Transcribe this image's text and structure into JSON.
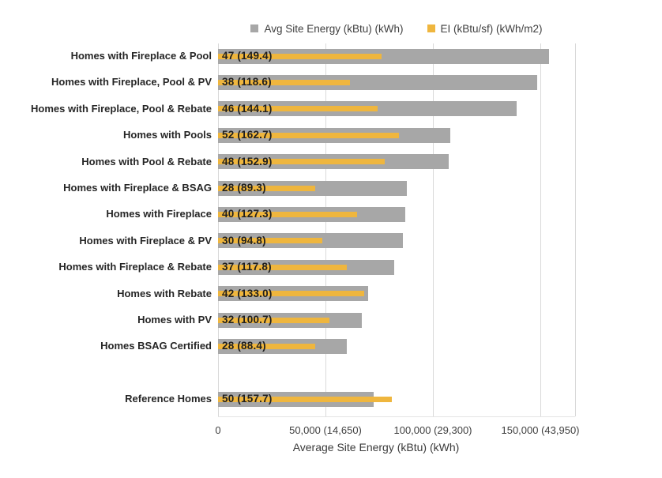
{
  "legend": {
    "items": [
      {
        "label": "Avg Site Energy (kBtu) (kWh)",
        "color": "#a7a7a7",
        "icon": "gray-square-icon"
      },
      {
        "label": "EI (kBtu/sf) (kWh/m2)",
        "color": "#efb63e",
        "icon": "yellow-square-icon"
      }
    ]
  },
  "chart_data": {
    "type": "bar",
    "orientation": "horizontal",
    "title": "",
    "xlabel": "Average Site Energy (kBtu) (kWh)",
    "ylabel": "",
    "x_axis": {
      "min": 0,
      "max": 150000,
      "tick_values": [
        0,
        50000,
        100000,
        150000
      ],
      "tick_labels": [
        "0",
        "50,000 (14,650)",
        "100,000 (29,300)",
        "150,000 (43,950)"
      ],
      "grid": true
    },
    "ei_axis": {
      "min": 0,
      "max": 100,
      "visible": false
    },
    "legend_position": "top",
    "series": [
      {
        "name": "Avg Site Energy (kBtu) (kWh)",
        "color": "#a7a7a7",
        "field": "site_energy"
      },
      {
        "name": "EI (kBtu/sf) (kWh/m2)",
        "color": "#efb63e",
        "field": "ei"
      }
    ],
    "rows": [
      {
        "category": "Homes with Fireplace & Pool",
        "site_energy": 154000,
        "ei": 47,
        "ei_label": "47 (149.4)",
        "slot": 0
      },
      {
        "category": "Homes with Fireplace, Pool & PV",
        "site_energy": 148500,
        "ei": 38,
        "ei_label": "38 (118.6)",
        "slot": 1
      },
      {
        "category": "Homes with Fireplace, Pool & Rebate",
        "site_energy": 139000,
        "ei": 46,
        "ei_label": "46 (144.1)",
        "slot": 2
      },
      {
        "category": "Homes with Pools",
        "site_energy": 108000,
        "ei": 52,
        "ei_label": "52 (162.7)",
        "slot": 3
      },
      {
        "category": "Homes with Pool & Rebate",
        "site_energy": 107500,
        "ei": 48,
        "ei_label": "48 (152.9)",
        "slot": 4
      },
      {
        "category": "Homes with Fireplace & BSAG",
        "site_energy": 88000,
        "ei": 28,
        "ei_label": "28 (89.3)",
        "slot": 5
      },
      {
        "category": "Homes with Fireplace",
        "site_energy": 87000,
        "ei": 40,
        "ei_label": "40 (127.3)",
        "slot": 6
      },
      {
        "category": "Homes with Fireplace & PV",
        "site_energy": 86000,
        "ei": 30,
        "ei_label": "30 (94.8)",
        "slot": 7
      },
      {
        "category": "Homes with Fireplace & Rebate",
        "site_energy": 82000,
        "ei": 37,
        "ei_label": "37 (117.8)",
        "slot": 8
      },
      {
        "category": "Homes with Rebate",
        "site_energy": 70000,
        "ei": 42,
        "ei_label": "42 (133.0)",
        "slot": 9
      },
      {
        "category": "Homes with PV",
        "site_energy": 67000,
        "ei": 32,
        "ei_label": "32 (100.7)",
        "slot": 10
      },
      {
        "category": "Homes BSAG Certified",
        "site_energy": 60000,
        "ei": 28,
        "ei_label": "28 (88.4)",
        "slot": 11
      },
      {
        "category": "Reference Homes",
        "site_energy": 72500,
        "ei": 50,
        "ei_label": "50 (157.7)",
        "slot": 13
      }
    ]
  }
}
